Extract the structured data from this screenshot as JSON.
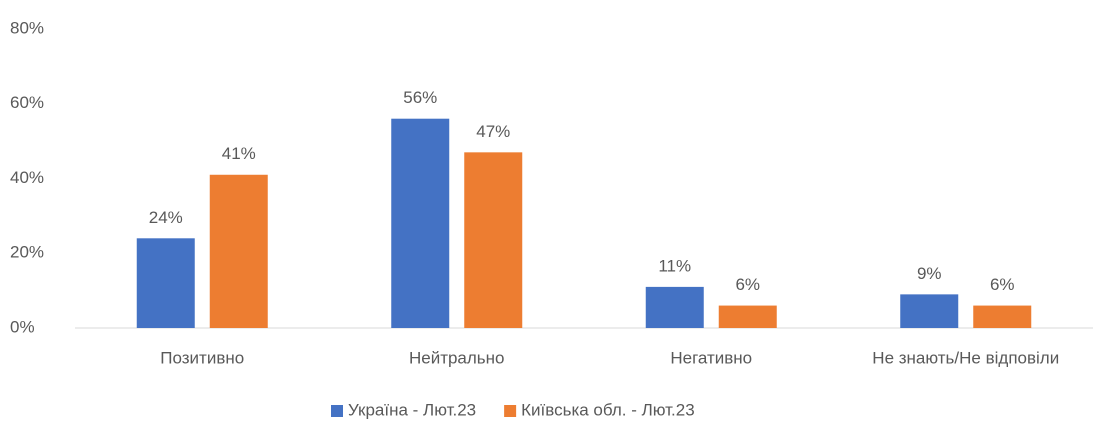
{
  "chart_data": {
    "type": "bar",
    "categories": [
      "Позитивно",
      "Нейтрально",
      "Негативно",
      "Не знають/Не відповіли"
    ],
    "series": [
      {
        "name": "Україна - Лют.23",
        "color": "#4472c4",
        "values": [
          24,
          56,
          11,
          9
        ],
        "value_labels": [
          "24%",
          "56%",
          "11%",
          "9%"
        ]
      },
      {
        "name": "Київська обл. - Лют.23",
        "color": "#ed7d31",
        "values": [
          41,
          47,
          6,
          6
        ],
        "value_labels": [
          "41%",
          "47%",
          "6%",
          "6%"
        ]
      }
    ],
    "ylim": [
      0,
      80
    ],
    "yticks": [
      {
        "value": 0,
        "label": "0%"
      },
      {
        "value": 20,
        "label": "20%"
      },
      {
        "value": 40,
        "label": "40%"
      },
      {
        "value": 60,
        "label": "60%"
      },
      {
        "value": 80,
        "label": "80%"
      }
    ],
    "grid": false,
    "legend": "bottom"
  }
}
